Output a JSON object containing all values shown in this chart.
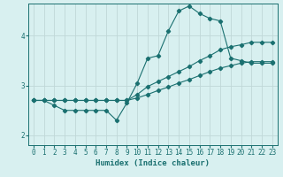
{
  "xlabel": "Humidex (Indice chaleur)",
  "ylabel": "",
  "bg_color": "#d8f0f0",
  "grid_color": "#c0d8d8",
  "line_color": "#1a7070",
  "xlim": [
    -0.5,
    23.5
  ],
  "ylim": [
    1.8,
    4.65
  ],
  "yticks": [
    2,
    3,
    4
  ],
  "xticks": [
    0,
    1,
    2,
    3,
    4,
    5,
    6,
    7,
    8,
    9,
    10,
    11,
    12,
    13,
    14,
    15,
    16,
    17,
    18,
    19,
    20,
    21,
    22,
    23
  ],
  "series1_x": [
    0,
    1,
    2,
    3,
    4,
    5,
    6,
    7,
    8,
    9,
    10,
    11,
    12,
    13,
    14,
    15,
    16,
    17,
    18,
    19,
    20,
    21,
    22,
    23
  ],
  "series1_y": [
    2.7,
    2.7,
    2.6,
    2.5,
    2.5,
    2.5,
    2.5,
    2.5,
    2.3,
    2.65,
    3.05,
    3.55,
    3.6,
    4.1,
    4.5,
    4.6,
    4.45,
    4.35,
    4.3,
    3.55,
    3.5,
    3.45,
    3.45,
    3.45
  ],
  "series2_x": [
    0,
    1,
    2,
    3,
    4,
    5,
    6,
    7,
    8,
    9,
    10,
    11,
    12,
    13,
    14,
    15,
    16,
    17,
    18,
    19,
    20,
    21,
    22,
    23
  ],
  "series2_y": [
    2.7,
    2.7,
    2.7,
    2.7,
    2.7,
    2.7,
    2.7,
    2.7,
    2.7,
    2.7,
    2.82,
    2.98,
    3.08,
    3.18,
    3.28,
    3.38,
    3.5,
    3.6,
    3.72,
    3.78,
    3.82,
    3.87,
    3.87,
    3.87
  ],
  "series3_x": [
    0,
    1,
    2,
    3,
    4,
    5,
    6,
    7,
    8,
    9,
    10,
    11,
    12,
    13,
    14,
    15,
    16,
    17,
    18,
    19,
    20,
    21,
    22,
    23
  ],
  "series3_y": [
    2.7,
    2.7,
    2.7,
    2.7,
    2.7,
    2.7,
    2.7,
    2.7,
    2.7,
    2.7,
    2.75,
    2.82,
    2.9,
    2.97,
    3.05,
    3.12,
    3.2,
    3.28,
    3.35,
    3.4,
    3.45,
    3.48,
    3.48,
    3.48
  ]
}
